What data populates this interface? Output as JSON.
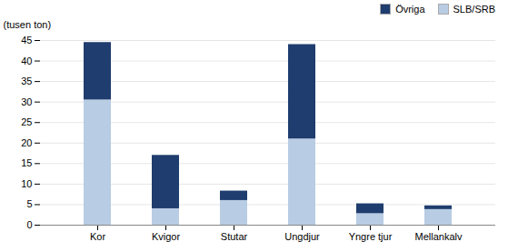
{
  "chart_data": {
    "type": "bar",
    "stacked": true,
    "categories": [
      "Kor",
      "Kvigor",
      "Stutar",
      "Ungdjur",
      "Yngre tjur",
      "Mellankalv"
    ],
    "series": [
      {
        "name": "SLB/SRB",
        "color": "#b8cce4",
        "values": [
          30.5,
          4.0,
          6.0,
          21.0,
          2.8,
          3.8
        ]
      },
      {
        "name": "Övriga",
        "color": "#1f3d6e",
        "values": [
          14.0,
          13.0,
          2.3,
          23.0,
          2.4,
          0.9
        ]
      }
    ],
    "ylabel": "(tusen ton)",
    "ylim": [
      0,
      45
    ],
    "yticks": [
      0,
      5,
      10,
      15,
      20,
      25,
      30,
      35,
      40,
      45
    ],
    "grid": true,
    "legend": "upper right"
  }
}
